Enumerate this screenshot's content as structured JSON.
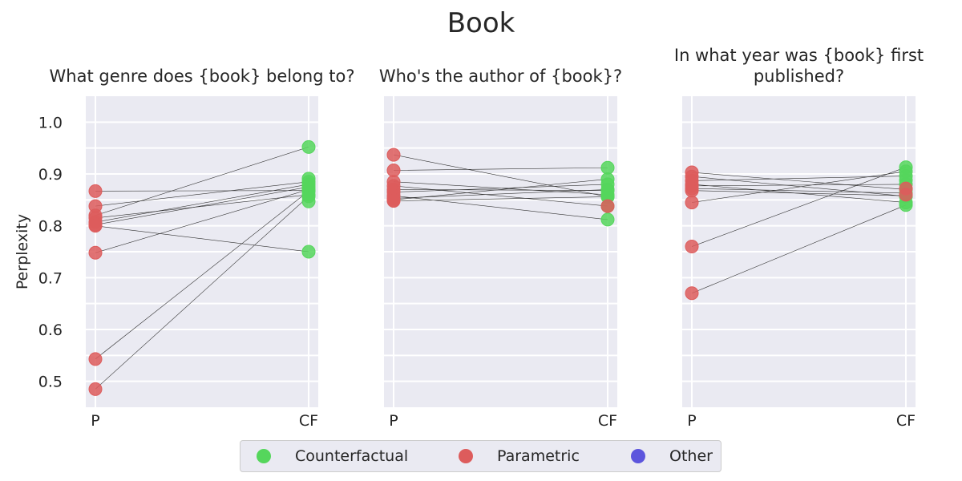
{
  "chart_data": {
    "type": "scatter",
    "title": "Book",
    "ylabel": "Perplexity",
    "ylim": [
      0.45,
      1.05
    ],
    "yticks": [
      "0.5",
      "0.6",
      "0.7",
      "0.8",
      "0.9",
      "1.0"
    ],
    "categories": [
      "P",
      "CF"
    ],
    "grid": true,
    "legend_position": "bottom-center",
    "colors": {
      "Counterfactual": "#55d65c",
      "Parametric": "#dd5c5c",
      "Other": "#5c55dd",
      "background": "#eaeaf2",
      "line": "#333333"
    },
    "legend": [
      "Counterfactual",
      "Parametric",
      "Other"
    ],
    "panels": [
      {
        "title_lines": [
          "What genre does {book} belong to?"
        ],
        "pairs": [
          [
            0.867,
            0.868
          ],
          [
            0.838,
            0.885
          ],
          [
            0.82,
            0.952
          ],
          [
            0.815,
            0.86
          ],
          [
            0.807,
            0.88
          ],
          [
            0.802,
            0.875
          ],
          [
            0.8,
            0.75
          ],
          [
            0.748,
            0.87
          ],
          [
            0.543,
            0.867
          ],
          [
            0.485,
            0.857
          ]
        ],
        "extra_cf": [
          0.847,
          0.891
        ]
      },
      {
        "title_lines": [
          "Who's the author of {book}?"
        ],
        "pairs": [
          [
            0.937,
            0.856
          ],
          [
            0.907,
            0.912
          ],
          [
            0.885,
            0.86
          ],
          [
            0.877,
            0.838
          ],
          [
            0.87,
            0.868
          ],
          [
            0.865,
            0.88
          ],
          [
            0.858,
            0.812
          ],
          [
            0.853,
            0.87
          ],
          [
            0.85,
            0.89
          ],
          [
            0.848,
            0.856
          ]
        ],
        "extra_cf": []
      },
      {
        "title_lines": [
          "In what year was {book} first",
          "published?"
        ],
        "pairs": [
          [
            0.903,
            0.87
          ],
          [
            0.895,
            0.857
          ],
          [
            0.887,
            0.896
          ],
          [
            0.88,
            0.845
          ],
          [
            0.877,
            0.88
          ],
          [
            0.872,
            0.863
          ],
          [
            0.868,
            0.858
          ],
          [
            0.845,
            0.905
          ],
          [
            0.76,
            0.913
          ],
          [
            0.67,
            0.84
          ]
        ],
        "extra_cf": [
          0.888,
          0.858
        ]
      }
    ]
  }
}
